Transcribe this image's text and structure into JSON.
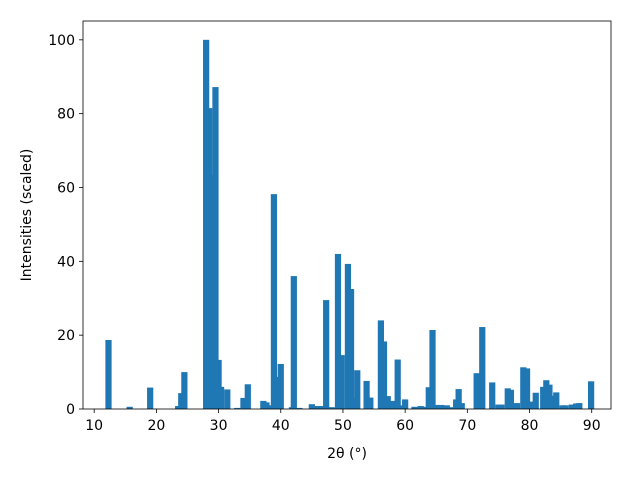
{
  "chart_data": {
    "type": "bar",
    "xlabel": "2θ (°)",
    "ylabel": "Intensities (scaled)",
    "color": "#1f77b4",
    "grid": false,
    "xlim": [
      8.2,
      93.1
    ],
    "xticks": [
      10,
      20,
      30,
      40,
      50,
      60,
      70,
      80,
      90
    ],
    "ylim": [
      0,
      105.1
    ],
    "yticks": [
      0,
      20,
      40,
      60,
      80,
      100
    ],
    "x": [
      12.3,
      15.7,
      19.0,
      23.5,
      24.0,
      24.5,
      28.0,
      28.5,
      29.0,
      29.5,
      30.0,
      30.4,
      31.4,
      33.0,
      34.0,
      34.7,
      37.2,
      37.7,
      38.3,
      38.9,
      39.5,
      40.0,
      41.8,
      42.1,
      43.0,
      45.0,
      46.0,
      46.5,
      47.3,
      48.2,
      49.2,
      49.8,
      50.8,
      51.3,
      51.8,
      52.3,
      53.8,
      54.4,
      56.1,
      56.6,
      57.2,
      58.0,
      58.8,
      59.4,
      60.0,
      61.5,
      62.5,
      63.3,
      63.8,
      64.4,
      65.0,
      65.8,
      66.7,
      67.2,
      68.2,
      68.6,
      69.1,
      71.5,
      72.0,
      72.4,
      74.0,
      75.0,
      75.5,
      76.5,
      77.0,
      78.0,
      79.0,
      79.6,
      80.4,
      81.0,
      82.2,
      82.7,
      83.2,
      83.8,
      84.3,
      85.3,
      85.8,
      86.8,
      87.5,
      88.0,
      89.9
    ],
    "values": [
      18.7,
      0.6,
      5.8,
      0.8,
      4.3,
      10,
      100,
      81.5,
      63.3,
      87.2,
      13.3,
      6,
      5.3,
      0.3,
      3,
      6.7,
      2.2,
      1.8,
      1,
      58.2,
      8.7,
      12.2,
      0.5,
      36,
      0.3,
      1.3,
      0.8,
      0.8,
      29.5,
      0.5,
      42,
      14.6,
      39.3,
      32.5,
      3,
      10.5,
      7.6,
      3.1,
      24,
      18.3,
      3.5,
      2.2,
      13.4,
      1,
      2.6,
      0.6,
      0.8,
      0.6,
      5.9,
      21.4,
      1.1,
      1.1,
      1.0,
      0.5,
      2.6,
      5.4,
      1.6,
      9.7,
      2,
      22.2,
      7.2,
      1.2,
      1.2,
      5.6,
      5.2,
      1.6,
      11.3,
      11,
      2,
      4.4,
      6,
      7.8,
      6.6,
      3.6,
      4.5,
      1,
      1,
      1.2,
      1.5,
      1.6,
      7.5
    ]
  }
}
